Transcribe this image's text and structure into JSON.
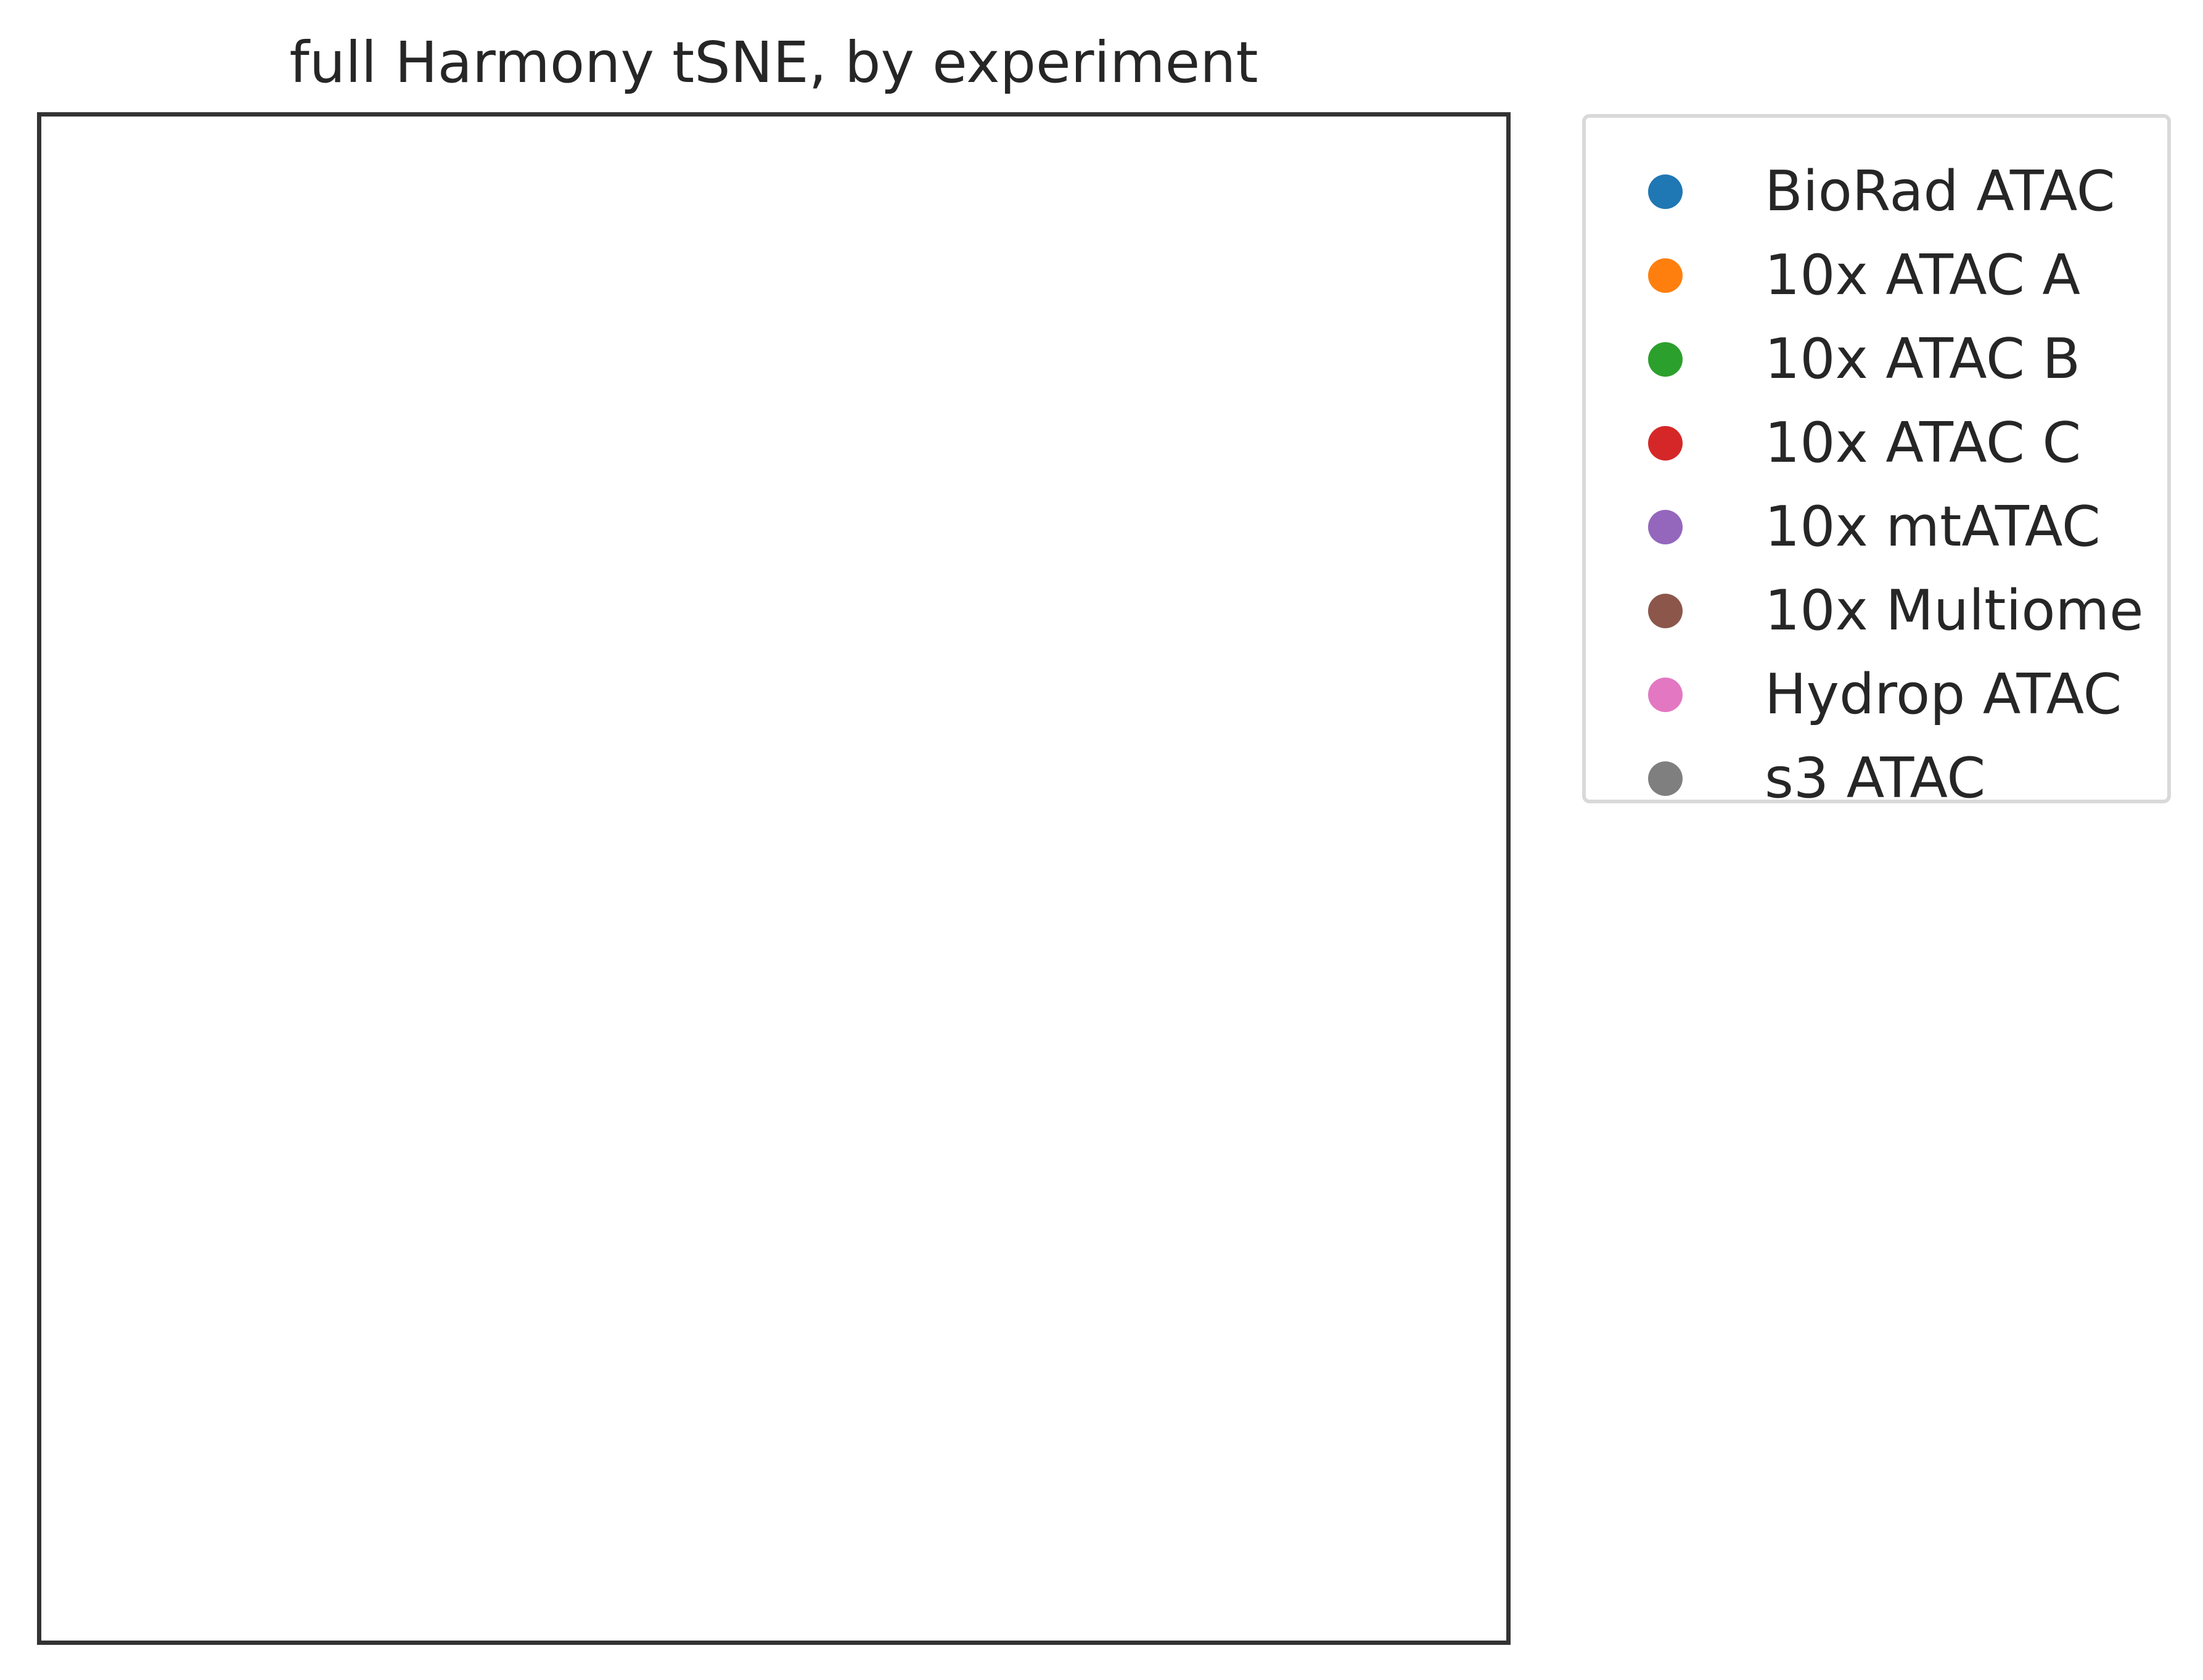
{
  "chart_data": {
    "type": "scatter",
    "title": "full Harmony tSNE, by experiment",
    "xlabel": "",
    "ylabel": "",
    "grid": false,
    "legend_position": "outside-right-top",
    "series": [
      {
        "name": "BioRad ATAC",
        "color": "#1f77b4",
        "points": []
      },
      {
        "name": "10x ATAC A",
        "color": "#ff7f0e",
        "points": []
      },
      {
        "name": "10x ATAC B",
        "color": "#2ca02c",
        "points": []
      },
      {
        "name": "10x ATAC C",
        "color": "#d62728",
        "points": []
      },
      {
        "name": "10x mtATAC",
        "color": "#9467bd",
        "points": []
      },
      {
        "name": "10x Multiome",
        "color": "#8c564b",
        "points": []
      },
      {
        "name": "Hydrop ATAC",
        "color": "#e377c2",
        "points": []
      },
      {
        "name": "s3 ATAC",
        "color": "#7f7f7f",
        "points": []
      }
    ]
  }
}
